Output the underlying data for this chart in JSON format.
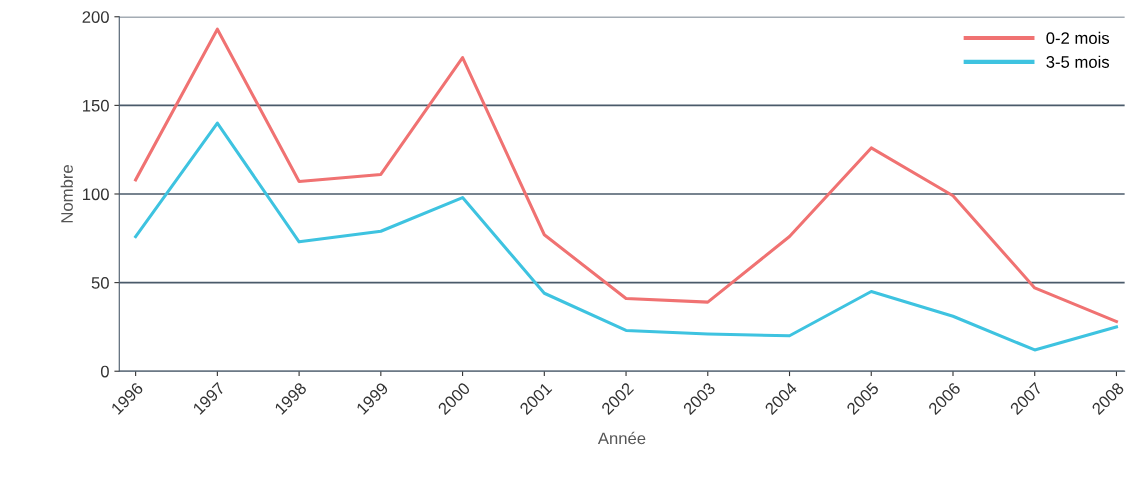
{
  "chart_data": {
    "type": "line",
    "xlabel": "Année",
    "ylabel": "Nombre",
    "categories": [
      "1996",
      "1997",
      "1998",
      "1999",
      "2000",
      "2001",
      "2002",
      "2003",
      "2004",
      "2005",
      "2006",
      "2007",
      "2008"
    ],
    "series": [
      {
        "name": "0-2 mois",
        "color": "#f07272",
        "values": [
          108,
          193,
          107,
          111,
          177,
          77,
          41,
          39,
          76,
          126,
          99,
          47,
          28
        ]
      },
      {
        "name": "3-5 mois",
        "color": "#3ec3e0",
        "values": [
          76,
          140,
          73,
          79,
          98,
          44,
          23,
          21,
          20,
          45,
          31,
          12,
          25
        ]
      }
    ],
    "ylim": [
      0,
      200
    ],
    "yticks": [
      0,
      50,
      100,
      150,
      200
    ],
    "grid": "y",
    "legend": "top right",
    "marker": "none",
    "line_style": "solid"
  }
}
